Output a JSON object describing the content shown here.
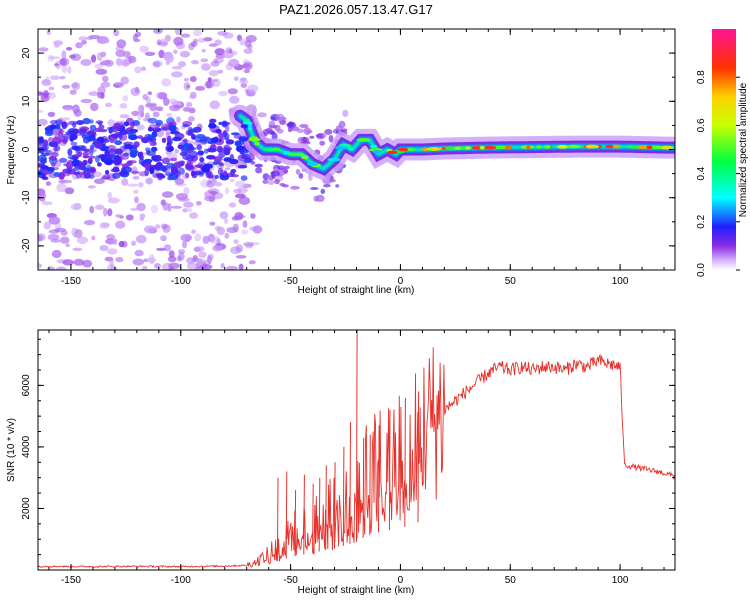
{
  "chart_data": [
    {
      "type": "heatmap",
      "title": "PAZ1.2026.057.13.47.G17",
      "xlabel": "Height of straight line (km)",
      "ylabel": "Frequency (Hz)",
      "xlim": [
        -165,
        125
      ],
      "ylim": [
        -25,
        25
      ],
      "xticks": [
        -150,
        -100,
        -50,
        0,
        50,
        100
      ],
      "xtick_labels": [
        "-150",
        "-100",
        "-50",
        "0",
        "50",
        "100"
      ],
      "yticks": [
        -20,
        -10,
        0,
        10,
        20
      ],
      "ytick_labels": [
        "-20",
        "-10",
        "0",
        "10",
        "20"
      ],
      "colorbar": {
        "label": "Normalized spectral amplitude",
        "range": [
          0,
          1
        ],
        "ticks": [
          0.0,
          0.2,
          0.4,
          0.6,
          0.8
        ],
        "tick_labels": [
          "0.0",
          "0.2",
          "0.4",
          "0.6",
          "0.8"
        ],
        "colormap": "rainbow (white → purple → blue → cyan → green → yellow → red → magenta)"
      },
      "ridge": {
        "description": "Dominant frequency ridge of the spectrogram",
        "x": [
          -73,
          -70,
          -66,
          -62,
          -56,
          -50,
          -45,
          -40,
          -35,
          -30,
          -26,
          -22,
          -18,
          -14,
          -10,
          -6,
          -2,
          0,
          10,
          20,
          40,
          60,
          80,
          100,
          120,
          125
        ],
        "y": [
          7,
          6,
          1.5,
          0,
          0,
          -1,
          -1,
          -3,
          -4,
          -2,
          1,
          0,
          2,
          2,
          -1,
          0,
          -1,
          0,
          0,
          0.2,
          0.4,
          0.5,
          0.6,
          0.6,
          0.4,
          0.4
        ]
      },
      "noise_region_km": [
        -165,
        -70
      ]
    },
    {
      "type": "line",
      "title": "",
      "xlabel": "Height of straight line (km)",
      "ylabel": "SNR (10 * v/v)",
      "xlim": [
        -165,
        125
      ],
      "ylim": [
        0,
        7800
      ],
      "xticks": [
        -150,
        -100,
        -50,
        0,
        50,
        100
      ],
      "xtick_labels": [
        "-150",
        "-100",
        "-50",
        "0",
        "50",
        "100"
      ],
      "yticks": [
        2000,
        4000,
        6000
      ],
      "ytick_labels": [
        "2000",
        "4000",
        "6000"
      ],
      "series": [
        {
          "name": "SNR",
          "color": "#e8302b",
          "x": [
            -165,
            -140,
            -120,
            -100,
            -80,
            -70,
            -66,
            -62,
            -58,
            -55,
            -50,
            -45,
            -40,
            -35,
            -30,
            -25,
            -22,
            -20,
            -18,
            -15,
            -10,
            -5,
            0,
            5,
            10,
            15,
            20,
            25,
            30,
            35,
            40,
            45,
            50,
            55,
            60,
            65,
            70,
            75,
            80,
            85,
            90,
            95,
            100,
            101,
            102,
            103,
            110,
            120,
            125
          ],
          "y": [
            120,
            110,
            120,
            110,
            130,
            150,
            250,
            450,
            700,
            900,
            1200,
            1400,
            1600,
            1800,
            2000,
            2300,
            2500,
            2600,
            2900,
            3200,
            3500,
            3700,
            3900,
            4200,
            4600,
            4900,
            5200,
            5500,
            5800,
            6100,
            6400,
            6600,
            6500,
            6600,
            6500,
            6600,
            6600,
            6500,
            6700,
            6600,
            6800,
            6700,
            6600,
            5000,
            3400,
            3400,
            3300,
            3150,
            3050
          ]
        }
      ],
      "spikes": {
        "x": [
          -56,
          -52,
          -48,
          -44,
          -40,
          -37,
          -34,
          -30,
          -26,
          -23,
          -20,
          -17,
          -14,
          -10,
          -5,
          2,
          8
        ],
        "y": [
          3000,
          3200,
          2600,
          3100,
          2800,
          3000,
          3400,
          3500,
          4000,
          4800,
          7800,
          4300,
          4400,
          4700,
          5200,
          5600,
          5800
        ]
      }
    }
  ]
}
